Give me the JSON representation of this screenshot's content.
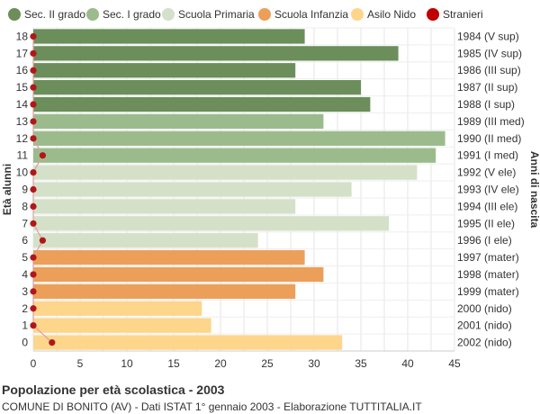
{
  "footer": {
    "title": "Popolazione per età scolastica - 2003",
    "subtitle": "COMUNE DI BONITO (AV) - Dati ISTAT 1° gennaio 2003 - Elaborazione TUTTITALIA.IT"
  },
  "chart_data": {
    "type": "bar",
    "orientation": "horizontal",
    "ylabel": "Età alunni",
    "ylabel_right": "Anni di nascita",
    "xlim": [
      0,
      45
    ],
    "x_ticks": [
      0,
      5,
      10,
      15,
      20,
      25,
      30,
      35,
      40,
      45
    ],
    "grid": true,
    "legend_position": "top",
    "legend": [
      {
        "key": "sec2",
        "name": "Sec. II grado",
        "color": "#6b8e5a"
      },
      {
        "key": "sec1",
        "name": "Sec. I grado",
        "color": "#9cbb8c"
      },
      {
        "key": "primaria",
        "name": "Scuola Primaria",
        "color": "#d5e0c9"
      },
      {
        "key": "infanzia",
        "name": "Scuola Infanzia",
        "color": "#ec9f59"
      },
      {
        "key": "nido",
        "name": "Asilo Nido",
        "color": "#fdd58b"
      },
      {
        "key": "stranieri",
        "name": "Stranieri",
        "color": "#c00000"
      }
    ],
    "rows": [
      {
        "age": "18",
        "birth": "1984 (V sup)",
        "value": 29,
        "stranieri": 0,
        "group": "sec2"
      },
      {
        "age": "17",
        "birth": "1985 (IV sup)",
        "value": 39,
        "stranieri": 0,
        "group": "sec2"
      },
      {
        "age": "16",
        "birth": "1986 (III sup)",
        "value": 28,
        "stranieri": 0,
        "group": "sec2"
      },
      {
        "age": "15",
        "birth": "1987 (II sup)",
        "value": 35,
        "stranieri": 0,
        "group": "sec2"
      },
      {
        "age": "14",
        "birth": "1988 (I sup)",
        "value": 36,
        "stranieri": 0,
        "group": "sec2"
      },
      {
        "age": "13",
        "birth": "1989 (III med)",
        "value": 31,
        "stranieri": 0,
        "group": "sec1"
      },
      {
        "age": "12",
        "birth": "1990 (II med)",
        "value": 44,
        "stranieri": 0,
        "group": "sec1"
      },
      {
        "age": "11",
        "birth": "1991 (I med)",
        "value": 43,
        "stranieri": 1,
        "group": "sec1"
      },
      {
        "age": "10",
        "birth": "1992 (V ele)",
        "value": 41,
        "stranieri": 0,
        "group": "primaria"
      },
      {
        "age": "9",
        "birth": "1993 (IV ele)",
        "value": 34,
        "stranieri": 0,
        "group": "primaria"
      },
      {
        "age": "8",
        "birth": "1994 (III ele)",
        "value": 28,
        "stranieri": 0,
        "group": "primaria"
      },
      {
        "age": "7",
        "birth": "1995 (II ele)",
        "value": 38,
        "stranieri": 0,
        "group": "primaria"
      },
      {
        "age": "6",
        "birth": "1996 (I ele)",
        "value": 24,
        "stranieri": 1,
        "group": "primaria"
      },
      {
        "age": "5",
        "birth": "1997 (mater)",
        "value": 29,
        "stranieri": 0,
        "group": "infanzia"
      },
      {
        "age": "4",
        "birth": "1998 (mater)",
        "value": 31,
        "stranieri": 0,
        "group": "infanzia"
      },
      {
        "age": "3",
        "birth": "1999 (mater)",
        "value": 28,
        "stranieri": 0,
        "group": "infanzia"
      },
      {
        "age": "2",
        "birth": "2000 (nido)",
        "value": 18,
        "stranieri": 0,
        "group": "nido"
      },
      {
        "age": "1",
        "birth": "2001 (nido)",
        "value": 19,
        "stranieri": 0,
        "group": "nido"
      },
      {
        "age": "0",
        "birth": "2002 (nido)",
        "value": 33,
        "stranieri": 2,
        "group": "nido"
      }
    ]
  }
}
